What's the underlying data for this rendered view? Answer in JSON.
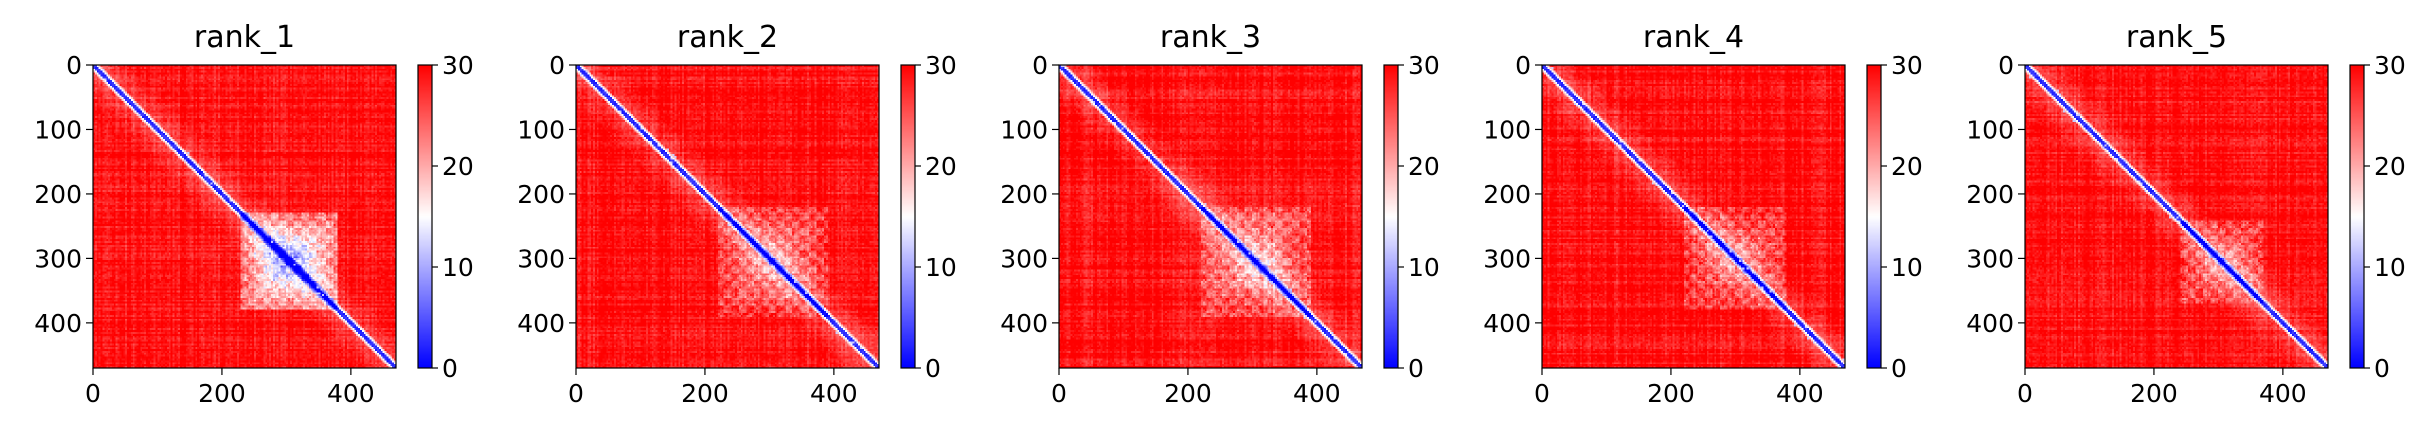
{
  "figure": {
    "colormap": {
      "name": "bwr",
      "low": "#0000ff",
      "mid": "#ffffff",
      "high": "#ff0000"
    }
  },
  "chart_data": [
    {
      "type": "heatmap",
      "title": "rank_1",
      "matrix_size": 470,
      "xlim": [
        0,
        470
      ],
      "ylim": [
        470,
        0
      ],
      "xticks": [
        0,
        200,
        400
      ],
      "yticks": [
        0,
        100,
        200,
        300,
        400
      ],
      "colorbar": {
        "range": [
          0,
          30
        ],
        "ticks": [
          0,
          10,
          20,
          30
        ]
      },
      "features": {
        "diagonal": "blue",
        "domain_span": [
          230,
          380
        ],
        "domain_strength": 0.85,
        "background": "mostly red (~28-30)"
      }
    },
    {
      "type": "heatmap",
      "title": "rank_2",
      "matrix_size": 470,
      "xlim": [
        0,
        470
      ],
      "ylim": [
        470,
        0
      ],
      "xticks": [
        0,
        200,
        400
      ],
      "yticks": [
        0,
        100,
        200,
        300,
        400
      ],
      "colorbar": {
        "range": [
          0,
          30
        ],
        "ticks": [
          0,
          10,
          20,
          30
        ]
      },
      "features": {
        "diagonal": "blue",
        "domain_span": [
          220,
          390
        ],
        "domain_strength": 0.45,
        "background": "mostly red (~28-30)"
      }
    },
    {
      "type": "heatmap",
      "title": "rank_3",
      "matrix_size": 470,
      "xlim": [
        0,
        470
      ],
      "ylim": [
        470,
        0
      ],
      "xticks": [
        0,
        200,
        400
      ],
      "yticks": [
        0,
        100,
        200,
        300,
        400
      ],
      "colorbar": {
        "range": [
          0,
          30
        ],
        "ticks": [
          0,
          10,
          20,
          30
        ]
      },
      "features": {
        "diagonal": "blue",
        "domain_span": [
          220,
          390
        ],
        "domain_strength": 0.5,
        "background": "mostly red (~28-30)"
      }
    },
    {
      "type": "heatmap",
      "title": "rank_4",
      "matrix_size": 470,
      "xlim": [
        0,
        470
      ],
      "ylim": [
        470,
        0
      ],
      "xticks": [
        0,
        200,
        400
      ],
      "yticks": [
        0,
        100,
        200,
        300,
        400
      ],
      "colorbar": {
        "range": [
          0,
          30
        ],
        "ticks": [
          0,
          10,
          20,
          30
        ]
      },
      "features": {
        "diagonal": "blue",
        "domain_span": [
          220,
          380
        ],
        "domain_strength": 0.4,
        "background": "mostly red (~28-30)"
      }
    },
    {
      "type": "heatmap",
      "title": "rank_5",
      "matrix_size": 470,
      "xlim": [
        0,
        470
      ],
      "ylim": [
        470,
        0
      ],
      "xticks": [
        0,
        200,
        400
      ],
      "yticks": [
        0,
        100,
        200,
        300,
        400
      ],
      "colorbar": {
        "range": [
          0,
          30
        ],
        "ticks": [
          0,
          10,
          20,
          30
        ]
      },
      "features": {
        "diagonal": "blue",
        "domain_span": [
          240,
          370
        ],
        "domain_strength": 0.4,
        "background": "mostly red (~28-30)"
      }
    }
  ]
}
